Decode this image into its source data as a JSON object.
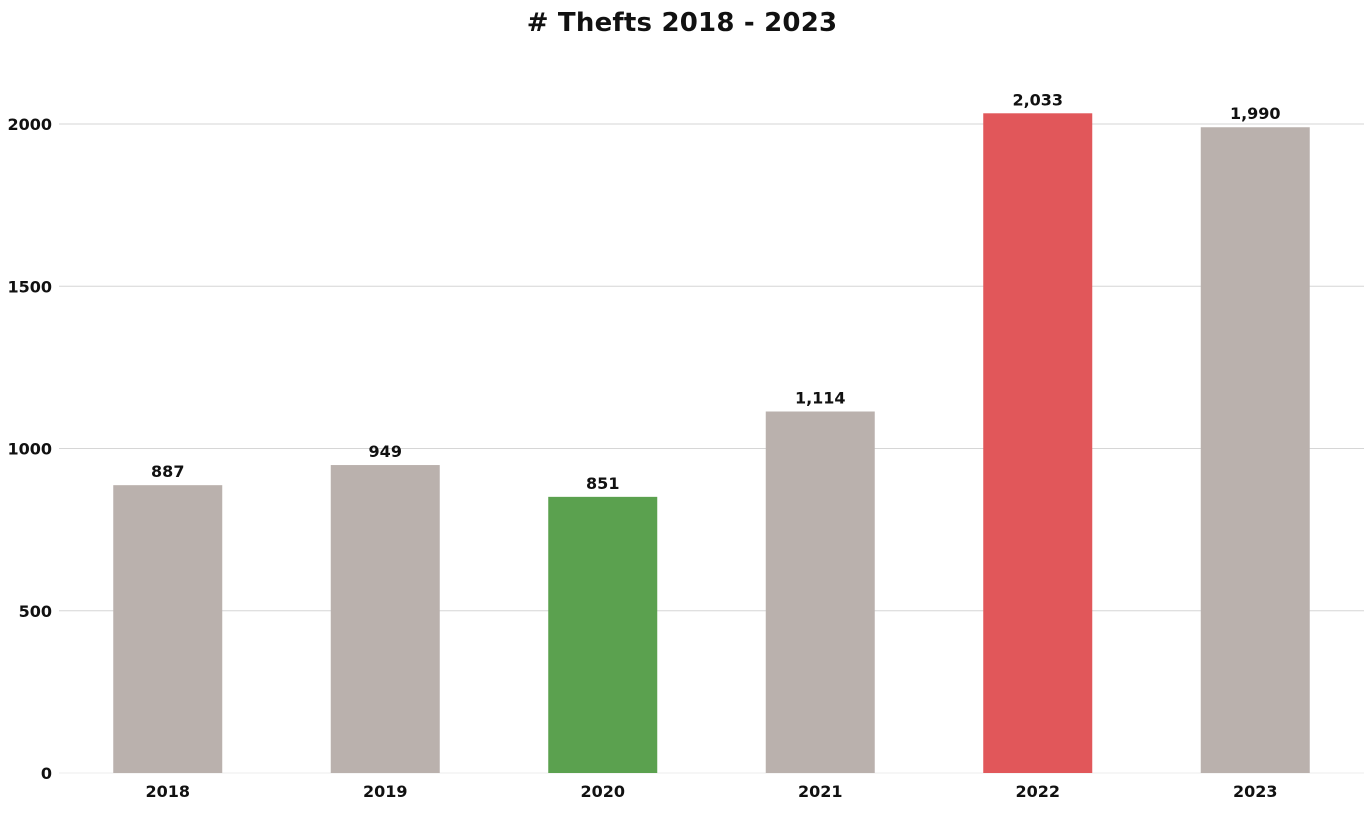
{
  "chart_data": {
    "type": "bar",
    "title": "# Thefts 2018 - 2023",
    "xlabel": "",
    "ylabel": "",
    "categories": [
      "2018",
      "2019",
      "2020",
      "2021",
      "2022",
      "2023"
    ],
    "values": [
      887,
      949,
      851,
      1114,
      2033,
      1990
    ],
    "data_labels": [
      "887",
      "949",
      "851",
      "1,114",
      "2,033",
      "1,990"
    ],
    "bar_colors": [
      "#bab1ad",
      "#bab1ad",
      "#5ba14f",
      "#bab1ad",
      "#e1575a",
      "#bab1ad"
    ],
    "ylim": [
      0,
      2000
    ],
    "yticks": [
      0,
      500,
      1000,
      1500,
      2000
    ],
    "ytick_labels": [
      "0",
      "500",
      "1000",
      "1500",
      "2000"
    ],
    "grid": true,
    "legend": "none"
  }
}
